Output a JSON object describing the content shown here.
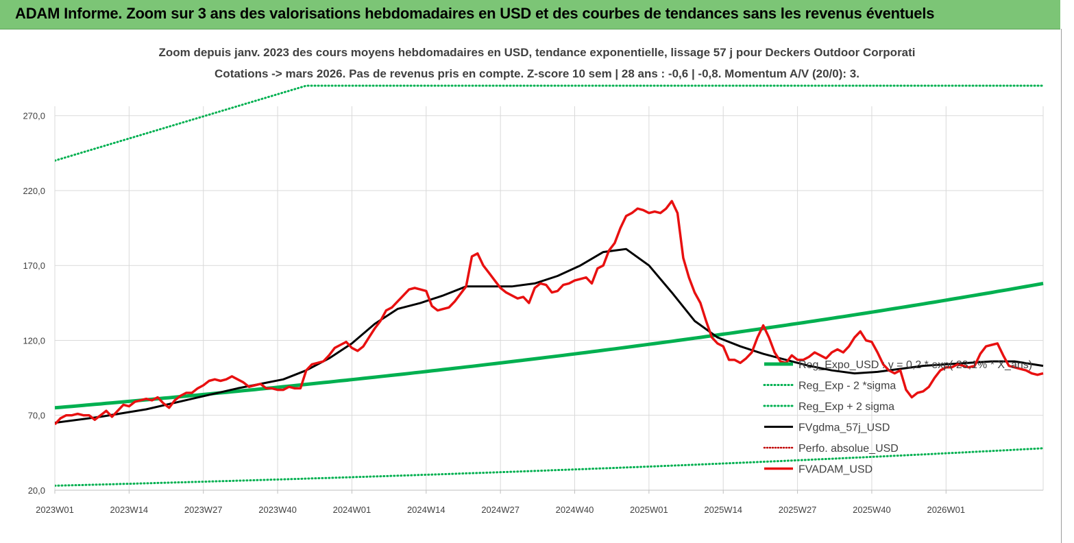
{
  "banner": {
    "title": "ADAM Informe. Zoom sur 3 ans des valorisations hebdomadaires en USD et des courbes de tendances sans les revenus éventuels"
  },
  "colors": {
    "banner": "#7cc576",
    "trend": "#00b050",
    "fv57": "#000000",
    "price": "#e81010",
    "perf": "#c00000"
  },
  "chart_data": {
    "type": "line",
    "title": "Zoom depuis janv. 2023 des cours moyens hebdomadaires en USD, tendance exponentielle, lissage 57 j pour Deckers Outdoor Corporati",
    "subtitle": "Cotations -> mars 2026. Pas de revenus pris en  compte. Z-score 10 sem  | 28 ans : -0,6 | -0,8. Momentum A/V (20/0): 3.",
    "xlabel": "",
    "ylabel": "",
    "ylim": [
      20,
      290
    ],
    "y_ticks": [
      "20,0",
      "70,0",
      "120,0",
      "170,0",
      "220,0",
      "270,0"
    ],
    "y_tick_values": [
      20,
      70,
      120,
      170,
      220,
      270
    ],
    "x_ticks": [
      "2023W01",
      "2023W14",
      "2023W27",
      "2023W40",
      "2024W01",
      "2024W14",
      "2024W27",
      "2024W40",
      "2025W01",
      "2025W14",
      "2025W27",
      "2025W40",
      "2026W01"
    ],
    "x_tick_index": [
      0,
      13,
      26,
      39,
      52,
      65,
      78,
      91,
      104,
      117,
      130,
      143,
      156
    ],
    "x_last_index": 173,
    "grid": true,
    "legend_position": "right",
    "series": [
      {
        "name": "Reg_Expo_USD : y = 0,2 * exp( 23,1% * X_ans)",
        "style": "solid-thick",
        "x": [
          0,
          173
        ],
        "y": [
          75,
          158
        ],
        "growth": "exponential"
      },
      {
        "name": "Reg_Exp - 2 *sigma",
        "style": "dotted",
        "x": [
          0,
          173
        ],
        "y": [
          23,
          48
        ],
        "growth": "exponential"
      },
      {
        "name": "Reg_Exp + 2 sigma",
        "style": "dotted",
        "x": [
          0,
          44,
          153,
          173
        ],
        "y": [
          240,
          290,
          290,
          290
        ],
        "note": "clipped at top"
      },
      {
        "name": "FVgdma_57j_USD",
        "style": "solid",
        "x": [
          0,
          8,
          16,
          24,
          32,
          40,
          44,
          48,
          52,
          56,
          60,
          64,
          68,
          72,
          76,
          80,
          84,
          88,
          92,
          96,
          100,
          104,
          108,
          112,
          116,
          120,
          124,
          128,
          132,
          136,
          140,
          144,
          148,
          152,
          156,
          160,
          164,
          168,
          173
        ],
        "y": [
          65,
          69,
          74,
          81,
          88,
          94,
          100,
          108,
          118,
          131,
          141,
          145,
          150,
          156,
          156,
          156,
          158,
          163,
          170,
          179,
          181,
          170,
          152,
          133,
          122,
          116,
          111,
          107,
          103,
          100,
          98,
          99,
          101,
          103,
          104,
          105,
          106,
          106,
          103
        ]
      },
      {
        "name": "Perfo. absolue_USD",
        "style": "dotted-red",
        "x": [],
        "y": []
      },
      {
        "name": "FVADAM_USD",
        "style": "solid-thick",
        "x": [
          0,
          1,
          2,
          3,
          4,
          5,
          6,
          7,
          8,
          9,
          10,
          11,
          12,
          13,
          14,
          15,
          16,
          17,
          18,
          19,
          20,
          21,
          22,
          23,
          24,
          25,
          26,
          27,
          28,
          29,
          30,
          31,
          32,
          33,
          34,
          35,
          36,
          37,
          38,
          39,
          40,
          41,
          42,
          43,
          44,
          45,
          46,
          47,
          48,
          49,
          50,
          51,
          52,
          53,
          54,
          55,
          56,
          57,
          58,
          59,
          60,
          61,
          62,
          63,
          64,
          65,
          66,
          67,
          68,
          69,
          70,
          71,
          72,
          73,
          74,
          75,
          76,
          77,
          78,
          79,
          80,
          81,
          82,
          83,
          84,
          85,
          86,
          87,
          88,
          89,
          90,
          91,
          92,
          93,
          94,
          95,
          96,
          97,
          98,
          99,
          100,
          101,
          102,
          103,
          104,
          105,
          106,
          107,
          108,
          109,
          110,
          111,
          112,
          113,
          114,
          115,
          116,
          117,
          118,
          119,
          120,
          121,
          122,
          123,
          124,
          125,
          126,
          127,
          128,
          129,
          130,
          131,
          132,
          133,
          134,
          135,
          136,
          137,
          138,
          139,
          140,
          141,
          142,
          143,
          144,
          145,
          146,
          147,
          148,
          149,
          150,
          151,
          152,
          153,
          154,
          155,
          156,
          157,
          158,
          159,
          160,
          161,
          162,
          163,
          164,
          165,
          166,
          167,
          168,
          169,
          170,
          171,
          172,
          173
        ],
        "y": [
          64,
          68,
          70,
          70,
          71,
          70,
          70,
          67,
          70,
          73,
          69,
          73,
          77,
          76,
          79,
          80,
          81,
          80,
          82,
          78,
          75,
          80,
          83,
          85,
          85,
          88,
          90,
          93,
          94,
          93,
          94,
          96,
          94,
          92,
          89,
          90,
          91,
          88,
          88,
          87,
          87,
          89,
          88,
          88,
          100,
          104,
          105,
          106,
          110,
          115,
          117,
          119,
          115,
          113,
          116,
          122,
          128,
          133,
          140,
          142,
          146,
          150,
          154,
          155,
          154,
          153,
          143,
          140,
          141,
          142,
          146,
          151,
          156,
          176,
          178,
          170,
          165,
          160,
          155,
          152,
          150,
          148,
          149,
          145,
          155,
          158,
          157,
          152,
          153,
          157,
          158,
          160,
          161,
          162,
          158,
          168,
          170,
          180,
          185,
          195,
          203,
          205,
          208,
          207,
          205,
          206,
          205,
          208,
          213,
          205,
          175,
          162,
          152,
          145,
          133,
          122,
          118,
          116,
          107,
          107,
          105,
          108,
          112,
          122,
          130,
          122,
          112,
          106,
          105,
          110,
          107,
          107,
          109,
          112,
          110,
          108,
          112,
          114,
          112,
          116,
          122,
          126,
          120,
          119,
          112,
          104,
          100,
          98,
          100,
          87,
          82,
          85,
          86,
          89,
          95,
          100,
          102,
          102,
          104,
          103,
          102,
          103,
          111,
          116,
          117,
          118,
          110,
          103,
          102,
          101,
          100,
          98,
          97,
          98
        ]
      }
    ]
  }
}
